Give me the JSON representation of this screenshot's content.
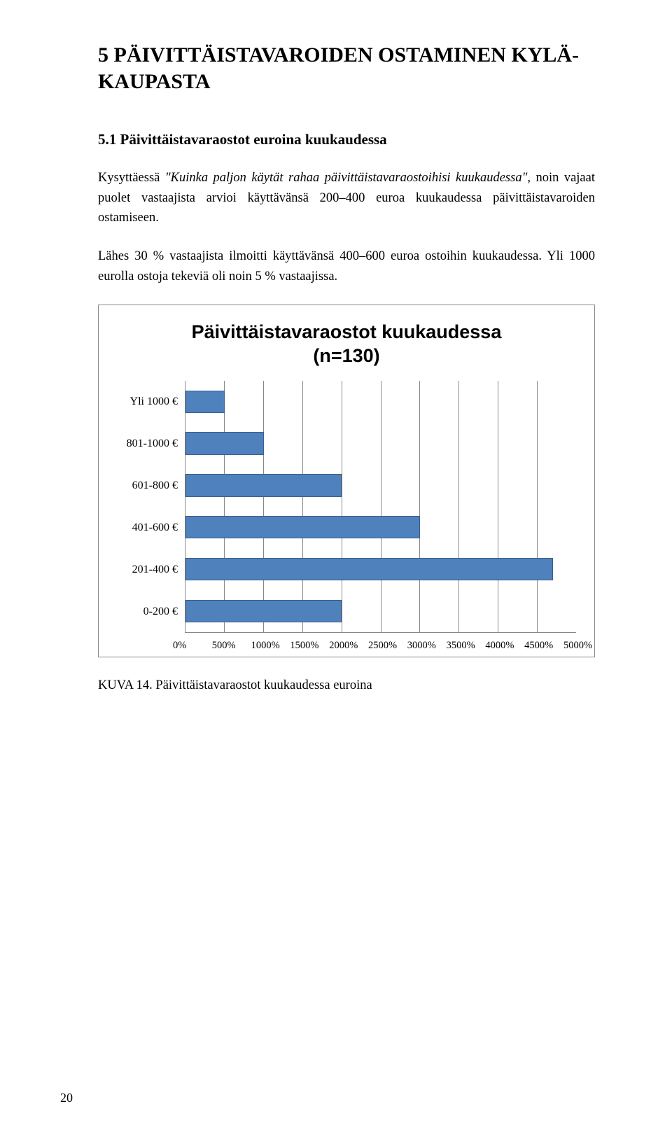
{
  "heading": {
    "line1": "5 PÄIVITTÄISTAVAROIDEN OSTAMINEN KYLÄ-",
    "line2": "KAUPASTA"
  },
  "subheading": "5.1 Päivittäistavaraostot euroina kuukaudessa",
  "para1_a": "Kysyttäessä ",
  "para1_italic": "\"Kuinka paljon käytät rahaa päivittäistavaraostoihisi kuukaudessa\"",
  "para1_b": ", noin vajaat puolet vastaajista arvioi käyttävänsä 200–400 euroa kuukaudessa päivittäistavaroiden ostamiseen.",
  "para2": "Lähes 30 % vastaajista ilmoitti käyttävänsä 400–600 euroa ostoihin kuukaudessa. Yli 1000 eurolla ostoja tekeviä oli noin 5 % vastaajissa.",
  "chart": {
    "type": "bar-horizontal",
    "title_line1": "Päivittäistavaraostot kuukaudessa",
    "title_line2": "(n=130)",
    "categories": [
      "Yli 1000 €",
      "801-1000 €",
      "601-800 €",
      "401-600 €",
      "201-400 €",
      "0-200 €"
    ],
    "values": [
      500,
      1000,
      2000,
      3000,
      4700,
      2000
    ],
    "xmax": 5000,
    "xticks": [
      "0%",
      "500%",
      "1000%",
      "1500%",
      "2000%",
      "2500%",
      "3000%",
      "3500%",
      "4000%",
      "4500%",
      "5000%"
    ],
    "bar_color": "#4f81bd",
    "bar_border_color": "#3a5f8b",
    "grid_color": "#888888",
    "background_color": "#ffffff",
    "title_fontsize": 27,
    "ylabel_fontsize": 16,
    "xlabel_fontsize": 14.5
  },
  "caption": "KUVA 14. Päivittäistavaraostot kuukaudessa euroina",
  "page_number": "20"
}
